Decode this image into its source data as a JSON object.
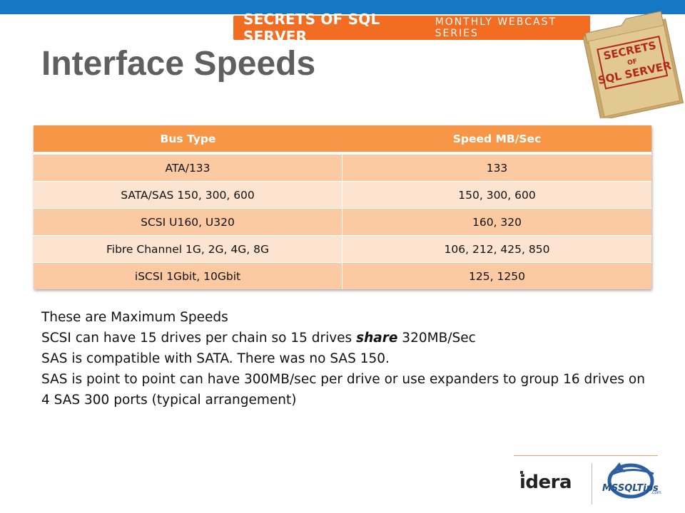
{
  "banner": {
    "bold_text": "SECRETS OF SQL SERVER",
    "light_text": "MONTHLY WEBCAST SERIES"
  },
  "folder_logo": {
    "line1": "SECRETS",
    "line2": "OF",
    "line3": "SQL SERVER"
  },
  "slide_title": "Interface Speeds",
  "table": {
    "headers": [
      "Bus Type",
      "Speed MB/Sec"
    ],
    "rows": [
      [
        "ATA/133",
        "133"
      ],
      [
        "SATA/SAS 150, 300, 600",
        "150, 300, 600"
      ],
      [
        "SCSI U160, U320",
        "160, 320"
      ],
      [
        "Fibre Channel 1G, 2G, 4G, 8G",
        "106, 212, 425, 850"
      ],
      [
        "iSCSI 1Gbit, 10Gbit",
        "125, 1250"
      ]
    ]
  },
  "notes": {
    "line1": "These are Maximum Speeds",
    "line2_pre": "SCSI can have 15 drives per chain so 15 drives ",
    "line2_em": "share",
    "line2_post": " 320MB/Sec",
    "line3": "SAS is compatible with SATA. There was no SAS 150.",
    "line4": "SAS is point to point can have 300MB/sec per drive or use expanders to group 16 drives on 4 SAS 300 ports (typical arrangement)"
  },
  "footer": {
    "idera_logo": "idera",
    "mssqltips_logo": "MSSQLTips",
    "mssqltips_suffix": ".com"
  },
  "colors": {
    "top_bar": "#1478c4",
    "banner": "#f26c21",
    "table_header": "#f79646",
    "row_dark": "#fbcaa2",
    "row_light": "#fde4d0",
    "title": "#5f5f5f"
  }
}
